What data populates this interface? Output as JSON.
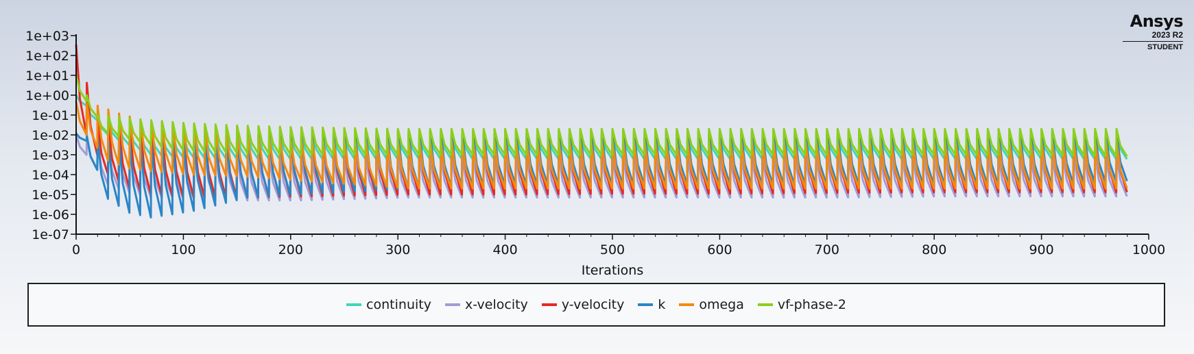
{
  "logo": {
    "name": "Ansys",
    "version": "2023 R2",
    "edition": "STUDENT"
  },
  "colors": {
    "continuity": "#40d6b6",
    "x-velocity": "#a29bd8",
    "y-velocity": "#e8281e",
    "k": "#2b85c6",
    "omega": "#f28a10",
    "vf-phase-2": "#8ccf1a"
  },
  "chart_data": {
    "type": "line",
    "title": "",
    "xlabel": "Iterations",
    "ylabel": "",
    "yscale": "log",
    "xlim": [
      0,
      1000
    ],
    "ylim": [
      1e-07,
      1000
    ],
    "x_ticks": [
      0,
      100,
      200,
      300,
      400,
      500,
      600,
      700,
      800,
      900,
      1000
    ],
    "x_tick_labels": [
      "0",
      "100",
      "200",
      "300",
      "400",
      "500",
      "600",
      "700",
      "800",
      "900",
      "1000"
    ],
    "y_ticks": [
      1e-07,
      1e-06,
      1e-05,
      0.0001,
      0.001,
      0.01,
      0.1,
      1,
      10,
      100,
      1000
    ],
    "y_tick_labels": [
      "1e-07",
      "1e-06",
      "1e-05",
      "1e-04",
      "1e-03",
      "1e-02",
      "1e-01",
      "1e+00",
      "1e+01",
      "1e+02",
      "1e+03"
    ],
    "legend_position": "bottom",
    "grid": false,
    "cycle_length_iterations": 10,
    "series": [
      {
        "name": "continuity",
        "x": [
          0,
          20,
          40,
          60,
          80,
          100,
          150,
          200,
          300,
          400,
          500,
          600,
          700,
          800,
          900,
          980
        ],
        "peak": [
          1.0,
          0.08,
          0.03,
          0.015,
          0.012,
          0.011,
          0.012,
          0.012,
          0.013,
          0.012,
          0.012,
          0.012,
          0.012,
          0.012,
          0.012,
          0.012
        ],
        "low": [
          0.3,
          0.01,
          0.003,
          0.001,
          0.0008,
          0.0007,
          0.0006,
          0.0006,
          0.0006,
          0.0006,
          0.0006,
          0.0006,
          0.0006,
          0.0006,
          0.0006,
          0.0006
        ]
      },
      {
        "name": "x-velocity",
        "x": [
          0,
          20,
          40,
          60,
          80,
          100,
          150,
          200,
          300,
          400,
          500,
          600,
          700,
          800,
          900,
          980
        ],
        "peak": [
          0.01,
          0.005,
          0.003,
          0.002,
          0.0015,
          0.0012,
          0.001,
          0.001,
          0.0009,
          0.0009,
          0.0009,
          0.0009,
          0.0009,
          0.0009,
          0.0009,
          0.0009
        ],
        "low": [
          0.001,
          3e-05,
          1.2e-05,
          7e-06,
          7e-06,
          6e-06,
          5e-06,
          5e-06,
          7e-06,
          7e-06,
          7e-06,
          7e-06,
          7e-06,
          8e-06,
          8e-06,
          8e-06
        ]
      },
      {
        "name": "y-velocity",
        "x": [
          0,
          20,
          40,
          60,
          80,
          100,
          150,
          200,
          300,
          400,
          500,
          600,
          700,
          800,
          900,
          980
        ],
        "peak": [
          350,
          0.05,
          0.025,
          0.02,
          0.015,
          0.012,
          0.01,
          0.01,
          0.009,
          0.008,
          0.008,
          0.008,
          0.008,
          0.008,
          0.008,
          0.008
        ],
        "low": [
          0.01,
          0.0001,
          2e-05,
          1e-05,
          8e-06,
          7e-06,
          7e-06,
          8e-06,
          1e-05,
          1e-05,
          1.1e-05,
          1.1e-05,
          1.2e-05,
          1.3e-05,
          1.3e-05,
          1.3e-05
        ]
      },
      {
        "name": "k",
        "x": [
          0,
          20,
          40,
          60,
          80,
          100,
          150,
          200,
          300,
          400,
          500,
          600,
          700,
          800,
          900,
          980
        ],
        "peak": [
          0.012,
          0.007,
          0.006,
          0.005,
          0.005,
          0.006,
          0.008,
          0.01,
          0.014,
          0.013,
          0.013,
          0.013,
          0.013,
          0.013,
          0.013,
          0.012
        ],
        "low": [
          0.005,
          6e-06,
          1.2e-06,
          7e-07,
          1e-06,
          1.5e-06,
          7e-06,
          1e-05,
          2e-05,
          3e-05,
          3e-05,
          3e-05,
          3e-05,
          3e-05,
          3e-05,
          5e-05
        ]
      },
      {
        "name": "omega",
        "x": [
          0,
          20,
          40,
          60,
          80,
          100,
          150,
          200,
          300,
          400,
          500,
          600,
          700,
          800,
          900,
          980
        ],
        "peak": [
          0.5,
          0.3,
          0.12,
          0.06,
          0.04,
          0.03,
          0.01,
          0.006,
          0.005,
          0.005,
          0.005,
          0.005,
          0.005,
          0.005,
          0.005,
          0.005
        ],
        "low": [
          0.01,
          0.0005,
          0.0002,
          0.00015,
          0.00012,
          0.0001,
          8e-05,
          5e-05,
          2e-05,
          2e-05,
          2e-05,
          2e-05,
          2e-05,
          2e-05,
          2e-05,
          2e-05
        ]
      },
      {
        "name": "vf-phase-2",
        "x": [
          0,
          20,
          40,
          60,
          80,
          100,
          150,
          200,
          300,
          400,
          500,
          600,
          700,
          800,
          900,
          980
        ],
        "peak": [
          10,
          0.1,
          0.08,
          0.06,
          0.05,
          0.04,
          0.03,
          0.025,
          0.02,
          0.02,
          0.02,
          0.02,
          0.02,
          0.02,
          0.02,
          0.02
        ],
        "low": [
          0.5,
          0.012,
          0.006,
          0.003,
          0.002,
          0.0015,
          0.0012,
          0.001,
          0.001,
          0.001,
          0.001,
          0.001,
          0.001,
          0.001,
          0.001,
          0.0008
        ]
      }
    ]
  }
}
